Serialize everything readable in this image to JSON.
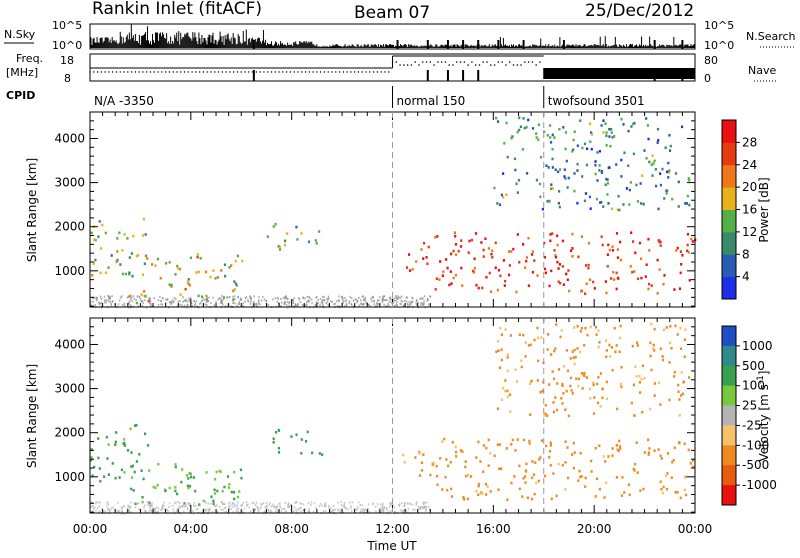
{
  "header": {
    "station": "Rankin Inlet (fitACF)",
    "beam": "Beam 07",
    "date": "25/Dec/2012"
  },
  "strip": {
    "nsky_label": "N.Sky",
    "nsearch_label": "N.Search",
    "nsky_ticks": [
      "10^5",
      "10^0"
    ],
    "nsearch_ticks": [
      "10^5",
      "10^0"
    ],
    "freq_label_1": "Freq.",
    "freq_label_2": "[MHz]",
    "freq_ticks": [
      "18",
      "8"
    ],
    "nave_label": "Nave",
    "nave_ticks": [
      "80",
      "0"
    ],
    "cpid_label": "CPID",
    "cpid_segments": [
      {
        "label": "N/A -3350",
        "start": 0,
        "end": 12
      },
      {
        "label": "normal 150",
        "start": 12,
        "end": 18
      },
      {
        "label": "twofsound 3501",
        "start": 18,
        "end": 24
      }
    ]
  },
  "chart_data": [
    {
      "type": "heatmap",
      "quantity": "Power",
      "ylabel": "Slant Range [km]",
      "xlabel": "Time UT",
      "xlim": [
        0,
        24
      ],
      "ylim": [
        180,
        4600
      ],
      "yticks": [
        "1000",
        "2000",
        "3000",
        "4000"
      ],
      "xticks": [
        "00:00",
        "04:00",
        "08:00",
        "12:00",
        "16:00",
        "20:00",
        "00:00"
      ],
      "colorbar": {
        "label": "Power [dB]",
        "ticks": [
          "4",
          "8",
          "12",
          "16",
          "20",
          "24",
          "28"
        ],
        "colors": [
          "#1c2ee8",
          "#2a5cb4",
          "#3a8a6a",
          "#54b046",
          "#e8b21c",
          "#f0781a",
          "#e83a10",
          "#e81010"
        ]
      },
      "regions": [
        {
          "name": "early-scatter",
          "t": [
            0.0,
            2.3
          ],
          "r": [
            900,
            2200
          ],
          "level": 0.45
        },
        {
          "name": "low-band",
          "t": [
            1.5,
            6.0
          ],
          "r": [
            300,
            1400
          ],
          "level": 0.55
        },
        {
          "name": "mid-cluster",
          "t": [
            7.0,
            9.2
          ],
          "r": [
            1500,
            2100
          ],
          "level": 0.4
        },
        {
          "name": "post-noon-plume",
          "t": [
            12.3,
            13.6
          ],
          "r": [
            1000,
            1700
          ],
          "level": 0.8
        },
        {
          "name": "evening-band",
          "t": [
            13.5,
            24.0
          ],
          "r": [
            500,
            1900
          ],
          "level": 0.85
        },
        {
          "name": "high-scatter",
          "t": [
            16.0,
            23.8
          ],
          "r": [
            2400,
            4500
          ],
          "level": 0.3
        }
      ]
    },
    {
      "type": "heatmap",
      "quantity": "Velocity",
      "ylabel": "Slant Range [km]",
      "xlabel": "Time UT",
      "xlim": [
        0,
        24
      ],
      "ylim": [
        180,
        4600
      ],
      "yticks": [
        "1000",
        "2000",
        "3000",
        "4000"
      ],
      "xticks": [
        "00:00",
        "04:00",
        "08:00",
        "12:00",
        "16:00",
        "20:00",
        "00:00"
      ],
      "colorbar": {
        "label": "Velocity [m s^-1]",
        "ticks": [
          "1000",
          "500",
          "100",
          "25",
          "-25",
          "-100",
          "-500",
          "-1000"
        ],
        "colors": [
          "#1c4fc4",
          "#2f8a8a",
          "#3aa050",
          "#7ac83c",
          "#b4b4b4",
          "#f5c26a",
          "#f08a20",
          "#e85a10",
          "#e81010"
        ]
      },
      "regions": [
        {
          "name": "early-scatter",
          "t": [
            0.0,
            2.3
          ],
          "r": [
            900,
            2200
          ],
          "vel": 200
        },
        {
          "name": "low-band",
          "t": [
            1.5,
            6.0
          ],
          "r": [
            300,
            1400
          ],
          "vel": 150
        },
        {
          "name": "mid-cluster",
          "t": [
            7.0,
            9.2
          ],
          "r": [
            1500,
            2100
          ],
          "vel": 300
        },
        {
          "name": "post-noon-plume",
          "t": [
            12.3,
            13.6
          ],
          "r": [
            1000,
            1700
          ],
          "vel": -150
        },
        {
          "name": "evening-band",
          "t": [
            13.5,
            24.0
          ],
          "r": [
            500,
            1900
          ],
          "vel": -200
        },
        {
          "name": "high-scatter",
          "t": [
            16.0,
            23.8
          ],
          "r": [
            2400,
            4500
          ],
          "vel": -150
        }
      ]
    }
  ],
  "xaxis_label": "Time UT"
}
